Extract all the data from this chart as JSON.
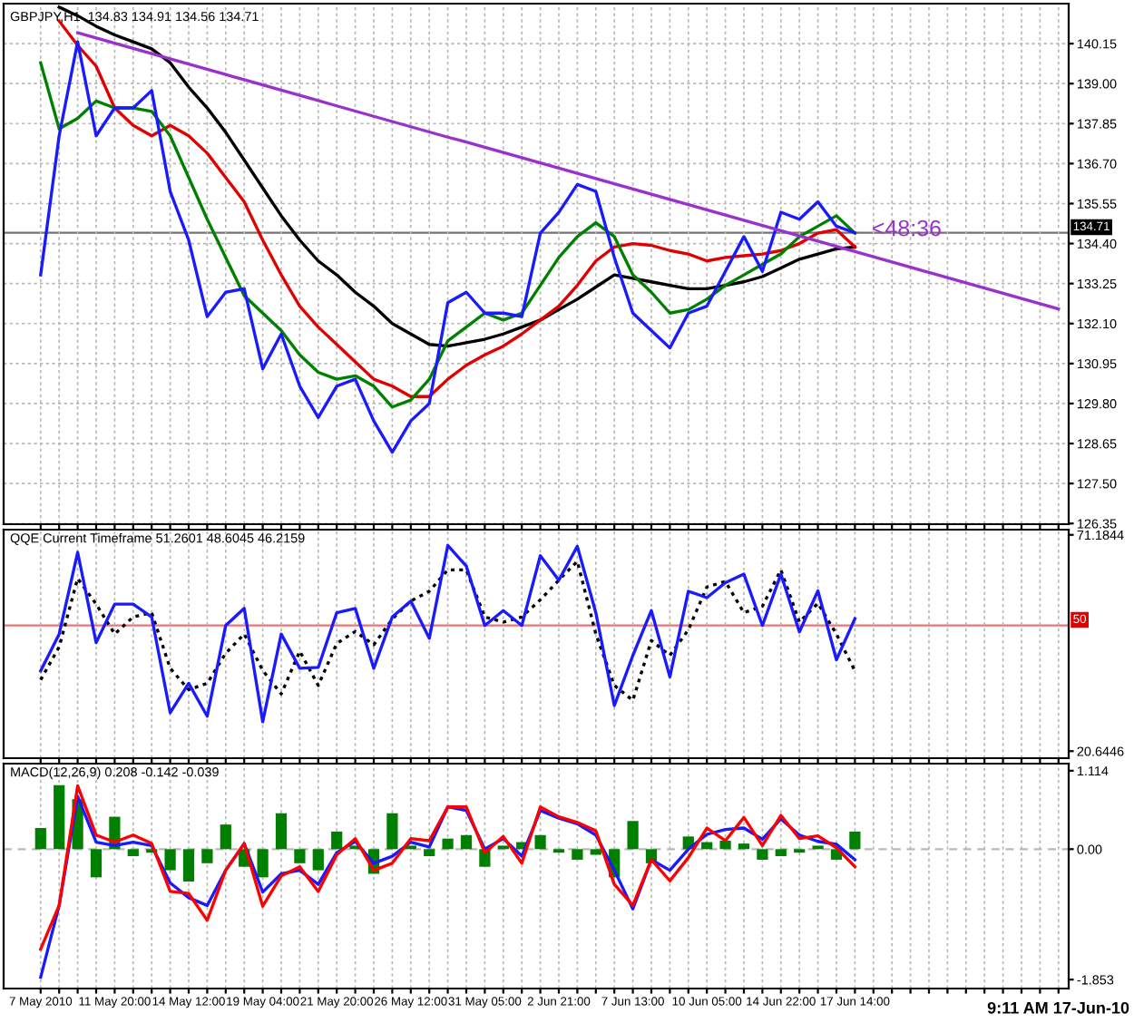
{
  "chart_data": [
    {
      "type": "line",
      "title": "GBPJPY,H1  134.83 134.91 134.56 134.71",
      "categories": [
        null,
        null,
        null,
        null,
        null,
        null,
        null,
        null,
        null,
        null,
        null,
        null,
        null,
        null,
        null,
        null,
        null,
        null,
        null,
        null,
        null,
        null,
        null,
        null,
        null,
        null,
        null,
        null,
        null,
        null,
        null,
        null,
        null,
        null,
        null,
        null,
        null,
        null,
        null,
        null,
        null,
        null,
        null,
        null,
        null,
        null,
        null,
        null,
        null,
        null,
        null,
        null,
        null,
        null,
        null,
        null
      ],
      "ylim": [
        126.33,
        141.3
      ],
      "yticks": [
        {
          "value": 126.35,
          "label": "126.35"
        },
        {
          "value": 127.5,
          "label": "127.50"
        },
        {
          "value": 128.65,
          "label": "128.65"
        },
        {
          "value": 129.8,
          "label": "129.80"
        },
        {
          "value": 130.95,
          "label": "130.95"
        },
        {
          "value": 132.1,
          "label": "132.10"
        },
        {
          "value": 133.25,
          "label": "133.25"
        },
        {
          "value": 134.4,
          "label": "134.40"
        },
        {
          "value": 135.55,
          "label": "135.55"
        },
        {
          "value": 136.7,
          "label": "136.70"
        },
        {
          "value": 137.85,
          "label": "137.85"
        },
        {
          "value": 139.0,
          "label": "139.00"
        },
        {
          "value": 140.15,
          "label": "140.15"
        }
      ],
      "grid": true,
      "tick_labels": "y",
      "ref_lines": [
        {
          "axis": "y",
          "value": 134.71,
          "label": "134.71",
          "color": "#000000"
        }
      ],
      "annotations": [
        "<48:36"
      ],
      "series": [
        {
          "color": "#000000",
          "values": [
            null,
            141.2,
            140.95,
            140.65,
            140.4,
            140.2,
            140.0,
            139.6,
            138.9,
            138.3,
            137.6,
            136.8,
            136.0,
            135.2,
            134.5,
            133.9,
            133.5,
            133.0,
            132.6,
            132.1,
            131.8,
            131.5,
            131.45,
            131.55,
            131.65,
            131.8,
            132.0,
            132.2,
            132.5,
            132.8,
            133.15,
            133.5,
            133.4,
            133.3,
            133.2,
            133.1,
            133.1,
            133.2,
            133.3,
            133.45,
            133.7,
            133.95,
            134.1,
            134.25,
            134.3,
            null,
            null,
            null,
            null,
            null,
            null,
            null,
            null,
            null,
            null,
            null
          ]
        },
        {
          "color": "#e00000",
          "values": [
            null,
            140.8,
            140.1,
            139.5,
            138.3,
            137.8,
            137.5,
            137.8,
            137.5,
            137.0,
            136.3,
            135.6,
            134.5,
            133.5,
            132.6,
            132.0,
            131.5,
            131.0,
            130.5,
            130.3,
            130.0,
            130.0,
            130.5,
            130.9,
            131.2,
            131.45,
            131.8,
            132.2,
            132.6,
            133.2,
            133.9,
            134.3,
            134.4,
            134.35,
            134.2,
            134.1,
            133.9,
            134.0,
            134.05,
            134.1,
            134.2,
            134.4,
            134.7,
            134.8,
            134.3,
            null,
            null,
            null,
            null,
            null,
            null,
            null,
            null,
            null,
            null,
            null
          ]
        },
        {
          "color": "#008000",
          "values": [
            139.6,
            137.7,
            138.0,
            138.5,
            138.3,
            138.3,
            138.2,
            137.5,
            136.3,
            135.1,
            134.0,
            132.9,
            132.4,
            131.9,
            131.2,
            130.7,
            130.5,
            130.6,
            130.3,
            129.7,
            129.9,
            130.5,
            131.6,
            132.0,
            132.4,
            132.2,
            132.4,
            133.2,
            134.0,
            134.6,
            135.0,
            134.6,
            133.5,
            133.0,
            132.4,
            132.5,
            132.8,
            133.2,
            133.5,
            133.8,
            134.1,
            134.6,
            134.9,
            135.2,
            134.7,
            null,
            null,
            null,
            null,
            null,
            null,
            null,
            null,
            null,
            null,
            null
          ]
        },
        {
          "color": "#1a1aff",
          "values": [
            133.5,
            137.5,
            140.2,
            137.5,
            138.3,
            138.3,
            138.8,
            135.9,
            134.5,
            132.3,
            133.0,
            133.1,
            130.8,
            131.8,
            130.3,
            129.4,
            130.3,
            130.5,
            129.3,
            128.4,
            129.3,
            129.8,
            132.7,
            133.0,
            132.4,
            132.4,
            132.3,
            134.7,
            135.3,
            136.1,
            135.9,
            134.0,
            132.4,
            131.9,
            131.4,
            132.4,
            132.6,
            133.6,
            134.6,
            133.6,
            135.3,
            135.1,
            135.6,
            134.9,
            134.71,
            null,
            null,
            null,
            null,
            null,
            null,
            null,
            null,
            null,
            null,
            null
          ]
        },
        {
          "color": "#9932cc",
          "values": [
            null,
            null,
            140.46,
            140.31,
            140.16,
            140.01,
            139.86,
            139.71,
            139.56,
            139.41,
            139.26,
            139.11,
            138.96,
            138.81,
            138.66,
            138.51,
            138.36,
            138.21,
            138.06,
            137.91,
            137.76,
            137.61,
            137.46,
            137.32,
            137.17,
            137.02,
            136.87,
            136.72,
            136.57,
            136.42,
            136.27,
            136.12,
            135.97,
            135.82,
            135.67,
            135.52,
            135.37,
            135.22,
            135.07,
            134.92,
            134.77,
            134.62,
            134.47,
            134.32,
            134.17,
            134.02,
            133.87,
            133.72,
            133.57,
            133.42,
            133.27,
            133.12,
            132.97,
            132.82,
            132.67,
            132.52
          ]
        }
      ]
    },
    {
      "type": "line",
      "title": "QQE Current Timeframe 51.2601 48.6045 46.2159",
      "categories": [
        null,
        null,
        null,
        null,
        null,
        null,
        null,
        null,
        null,
        null,
        null,
        null,
        null,
        null,
        null,
        null,
        null,
        null,
        null,
        null,
        null,
        null,
        null,
        null,
        null,
        null,
        null,
        null,
        null,
        null,
        null,
        null,
        null,
        null,
        null,
        null,
        null,
        null,
        null,
        null,
        null,
        null,
        null,
        null,
        null,
        null,
        null,
        null,
        null,
        null,
        null,
        null,
        null,
        null,
        null,
        null
      ],
      "ylim": [
        19.0,
        72.4
      ],
      "yticks": [
        20.6446,
        71.1844
      ],
      "grid": "x",
      "tick_labels": "y",
      "ref_lines": [
        {
          "axis": "y",
          "value": 50,
          "label": "50",
          "color": "#e00000"
        }
      ],
      "series": [
        {
          "color": "#000000",
          "line_style": "dotted",
          "values": [
            37.3,
            45,
            61,
            55,
            48,
            52,
            53,
            40,
            35,
            36.5,
            43.5,
            48,
            39.5,
            34,
            44,
            36,
            45.8,
            48.6,
            45.5,
            51.5,
            55.7,
            58,
            63,
            63,
            52,
            50.8,
            52,
            56,
            60.6,
            65,
            48,
            36,
            32.5,
            46.5,
            43,
            49,
            59,
            60.3,
            53,
            54.5,
            63,
            50.8,
            55.2,
            48,
            39.4,
            null,
            null,
            null,
            null,
            null,
            null,
            null,
            null,
            null,
            null,
            null
          ]
        },
        {
          "color": "#1a1aff",
          "values": [
            39.4,
            48,
            67.1,
            46,
            55,
            55,
            52,
            29.6,
            36.5,
            28.8,
            50,
            54,
            27.5,
            48,
            40,
            40.2,
            53,
            54,
            40,
            52,
            55.7,
            47,
            68.7,
            63.9,
            50,
            53.5,
            50,
            66.3,
            60.6,
            68.5,
            53,
            31.3,
            43,
            53.5,
            38,
            58,
            56.5,
            60,
            62,
            50,
            62,
            48.5,
            58.1,
            42,
            51.6,
            null,
            null,
            null,
            null,
            null,
            null,
            null,
            null,
            null,
            null,
            null
          ]
        }
      ]
    },
    {
      "type": "line",
      "title": "MACD(12,26,9) 0.208 -0.142 -0.039",
      "categories": [
        "7 May 2010",
        null,
        null,
        null,
        "11 May 20:00",
        null,
        null,
        null,
        "14 May 12:00",
        null,
        null,
        null,
        "19 May 04:00",
        null,
        null,
        null,
        "21 May 20:00",
        null,
        null,
        null,
        "26 May 12:00",
        null,
        null,
        null,
        "31 May 05:00",
        null,
        null,
        null,
        "2 Jun 21:00",
        null,
        null,
        null,
        "7 Jun 13:00",
        null,
        null,
        null,
        "10 Jun 05:00",
        null,
        null,
        null,
        "14 Jun 22:00",
        null,
        null,
        null,
        "17 Jun 14:00",
        null,
        null,
        null,
        null,
        null,
        null,
        null,
        null,
        null,
        null,
        null
      ],
      "ylim": [
        -1.98,
        1.215
      ],
      "yticks": [
        {
          "value": -1.853,
          "label": "-1.853"
        },
        {
          "value": 0,
          "label": "0.00"
        },
        {
          "value": 1.114,
          "label": "1.114"
        }
      ],
      "grid": "x",
      "ref_lines": [
        {
          "axis": "y",
          "value": 0,
          "color": "#808080",
          "line_style": "dashed"
        }
      ],
      "annotations": [
        "9:11 AM 17-Jun-10"
      ],
      "series": [
        {
          "type": "bar",
          "color": "#008000",
          "values": [
            0.3,
            0.91,
            0.71,
            -0.4,
            0.46,
            -0.1,
            -0.05,
            -0.3,
            -0.46,
            -0.2,
            0.35,
            -0.25,
            -0.4,
            0.51,
            -0.2,
            -0.3,
            0.25,
            0.05,
            -0.35,
            0.51,
            0.05,
            -0.1,
            0.15,
            0.2,
            -0.25,
            0.05,
            0.1,
            0.2,
            -0.05,
            -0.15,
            -0.08,
            -0.4,
            0.4,
            -0.2,
            0,
            0.18,
            0.1,
            0.12,
            0.08,
            -0.15,
            -0.1,
            -0.05,
            0.05,
            -0.15,
            0.25,
            null,
            null,
            null,
            null,
            null,
            null,
            null,
            null,
            null,
            null,
            null
          ]
        },
        {
          "color": "#1a1aff",
          "values": [
            -1.82,
            -0.8,
            0.75,
            0.1,
            0.05,
            0.1,
            0.05,
            -0.48,
            -0.69,
            -0.8,
            -0.3,
            0.08,
            -0.61,
            -0.35,
            -0.3,
            -0.5,
            -0.05,
            0.11,
            -0.2,
            -0.1,
            0.1,
            0.03,
            0.6,
            0.55,
            0,
            0.15,
            -0.1,
            0.55,
            0.44,
            0.36,
            0.2,
            -0.3,
            -0.85,
            -0.15,
            -0.3,
            0,
            0.21,
            0.28,
            0.3,
            0.14,
            0.43,
            0.2,
            0.11,
            0.07,
            -0.15,
            null,
            null,
            null,
            null,
            null,
            null,
            null,
            null,
            null,
            null,
            null
          ]
        },
        {
          "color": "#ff0000",
          "values": [
            -1.42,
            -0.8,
            0.9,
            0.2,
            0.1,
            0.2,
            0.08,
            -0.6,
            -0.63,
            -1.01,
            -0.3,
            0.08,
            -0.81,
            -0.38,
            -0.25,
            -0.6,
            -0.08,
            0.15,
            -0.3,
            -0.2,
            0.15,
            0.12,
            0.6,
            0.6,
            -0.05,
            0.18,
            -0.2,
            0.6,
            0.46,
            0.38,
            0.26,
            -0.5,
            -0.8,
            -0.15,
            -0.45,
            -0.12,
            0.3,
            0.12,
            0.45,
            0.05,
            0.48,
            0.15,
            0.19,
            0.02,
            -0.25,
            null,
            null,
            null,
            null,
            null,
            null,
            null,
            null,
            null,
            null,
            null
          ]
        }
      ]
    }
  ]
}
